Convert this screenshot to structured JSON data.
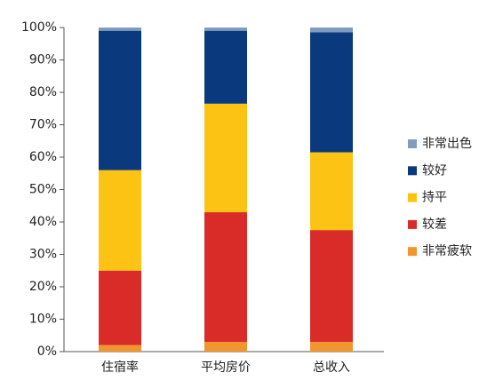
{
  "chart_data": {
    "type": "stacked_bar",
    "categories": [
      "住宿率",
      "平均房价",
      "总收入"
    ],
    "series": [
      {
        "name": "非常疲软",
        "color": "#f0962e",
        "values": [
          2,
          3,
          3
        ]
      },
      {
        "name": "较差",
        "color": "#d92b27",
        "values": [
          23,
          40,
          34.5
        ]
      },
      {
        "name": "持平",
        "color": "#fcc315",
        "values": [
          31,
          33.5,
          24
        ]
      },
      {
        "name": "较好",
        "color": "#0a3a7d",
        "values": [
          43,
          22.5,
          37
        ]
      },
      {
        "name": "非常出色",
        "color": "#7f9bbd",
        "values": [
          1,
          1,
          1.5
        ]
      }
    ],
    "ylim": [
      0,
      100
    ],
    "yticks": [
      {
        "value": 0,
        "label": "0%"
      },
      {
        "value": 10,
        "label": "10%"
      },
      {
        "value": 20,
        "label": "20%"
      },
      {
        "value": 30,
        "label": "30%"
      },
      {
        "value": 40,
        "label": "40%"
      },
      {
        "value": 50,
        "label": "50%"
      },
      {
        "value": 60,
        "label": "60%"
      },
      {
        "value": 70,
        "label": "70%"
      },
      {
        "value": 80,
        "label": "80%"
      },
      {
        "value": 90,
        "label": "90%"
      },
      {
        "value": 100,
        "label": "100%"
      }
    ],
    "legend": "right"
  }
}
